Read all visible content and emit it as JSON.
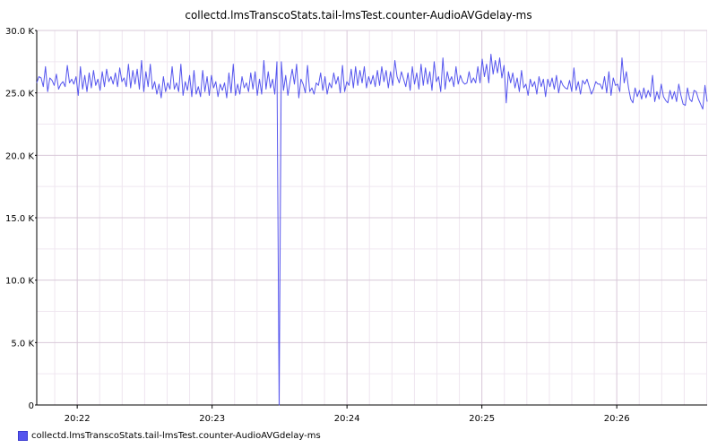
{
  "chart_data": {
    "type": "line",
    "title": "collectd.lmsTranscoStats.tail-lmsTest.counter-AudioAVGdelay-ms",
    "xlabel": "",
    "ylabel": "",
    "ylim": [
      0,
      30000
    ],
    "y_ticks": [
      {
        "value": 0,
        "label": "0"
      },
      {
        "value": 5000,
        "label": "5.0 K"
      },
      {
        "value": 10000,
        "label": "10.0 K"
      },
      {
        "value": 15000,
        "label": "15.0 K"
      },
      {
        "value": 20000,
        "label": "20.0 K"
      },
      {
        "value": 25000,
        "label": "25.0 K"
      },
      {
        "value": 30000,
        "label": "30.0 K"
      }
    ],
    "x_range_minutes": [
      1281.7,
      1286.67
    ],
    "x_ticks": [
      {
        "value": 1282,
        "label": "20:22"
      },
      {
        "value": 1283,
        "label": "20:23"
      },
      {
        "value": 1284,
        "label": "20:24"
      },
      {
        "value": 1285,
        "label": "20:25"
      },
      {
        "value": 1286,
        "label": "20:26"
      }
    ],
    "grid": true,
    "legend_position": "bottom-left",
    "series": [
      {
        "name": "collectd.lmsTranscoStats.tail-lmsTest.counter-AudioAVGdelay-ms",
        "color": "#5555ee",
        "values": [
          25800,
          26300,
          26200,
          25500,
          27100,
          25100,
          26200,
          26000,
          25600,
          26500,
          25300,
          25700,
          25900,
          25500,
          27200,
          25800,
          26100,
          25700,
          26300,
          24800,
          27100,
          25300,
          26400,
          25100,
          26600,
          25400,
          26800,
          25600,
          26100,
          25200,
          26700,
          25500,
          26900,
          25900,
          26300,
          25700,
          26600,
          25500,
          27000,
          25900,
          26200,
          25500,
          27300,
          25400,
          26800,
          25700,
          26900,
          25300,
          27600,
          25100,
          26700,
          25500,
          27300,
          25300,
          25900,
          24900,
          25700,
          24600,
          26300,
          25100,
          25800,
          25300,
          27100,
          25300,
          25800,
          25100,
          27300,
          24800,
          25900,
          25200,
          26400,
          24700,
          26800,
          24900,
          25500,
          24700,
          26800,
          25100,
          26300,
          24800,
          26400,
          25400,
          25900,
          24700,
          25700,
          25200,
          25800,
          24600,
          26600,
          25000,
          27300,
          24800,
          25700,
          24900,
          26300,
          25400,
          25800,
          25100,
          26600,
          25300,
          26700,
          24800,
          26100,
          24900,
          27600,
          25300,
          26700,
          25400,
          26100,
          24900,
          27500,
          0,
          27500,
          25200,
          26400,
          24800,
          25900,
          26900,
          25700,
          27300,
          24600,
          26100,
          25700,
          25000,
          27200,
          25100,
          25400,
          24900,
          25800,
          25600,
          26600,
          25200,
          26300,
          24900,
          25800,
          25400,
          26600,
          25700,
          26300,
          25000,
          27200,
          25100,
          25900,
          25600,
          26900,
          25400,
          27100,
          25600,
          26800,
          25800,
          27100,
          25400,
          26300,
          25700,
          26400,
          25500,
          26800,
          25600,
          27100,
          25900,
          26800,
          25400,
          26700,
          25600,
          27600,
          26300,
          25800,
          26700,
          26100,
          25500,
          26600,
          25200,
          27100,
          25700,
          26600,
          25300,
          27300,
          25600,
          27000,
          25700,
          26700,
          25200,
          27500,
          25900,
          26300,
          25100,
          27800,
          25300,
          26700,
          25900,
          26300,
          25500,
          27100,
          25700,
          26400,
          25900,
          25700,
          25800,
          26700,
          25800,
          26200,
          25800,
          27100,
          25800,
          27700,
          26300,
          27300,
          25800,
          28100,
          26500,
          27600,
          26600,
          27800,
          26200,
          27200,
          24200,
          26700,
          25800,
          26600,
          25400,
          26200,
          25100,
          26800,
          25400,
          25700,
          24800,
          26100,
          25500,
          25900,
          24900,
          26300,
          25500,
          26100,
          24700,
          26100,
          25500,
          26200,
          25300,
          26400,
          25000,
          26000,
          25600,
          25400,
          25300,
          26000,
          25100,
          27000,
          25200,
          25900,
          24900,
          26000,
          25700,
          26100,
          25500,
          24900,
          25300,
          25900,
          25700,
          25700,
          25300,
          26300,
          25000,
          26700,
          24800,
          26200,
          25600,
          25700,
          25100,
          27800,
          25800,
          26700,
          25400,
          24500,
          24200,
          25400,
          24700,
          25200,
          24500,
          25400,
          24600,
          25200,
          24700,
          26400,
          24300,
          25100,
          24500,
          25700,
          24700,
          24400,
          24200,
          25200,
          24500,
          25100,
          24300,
          25700,
          24800,
          24100,
          24000,
          25400,
          24500,
          24300,
          25200,
          25100,
          24500,
          24100,
          23700,
          25600,
          24300
        ]
      }
    ]
  }
}
